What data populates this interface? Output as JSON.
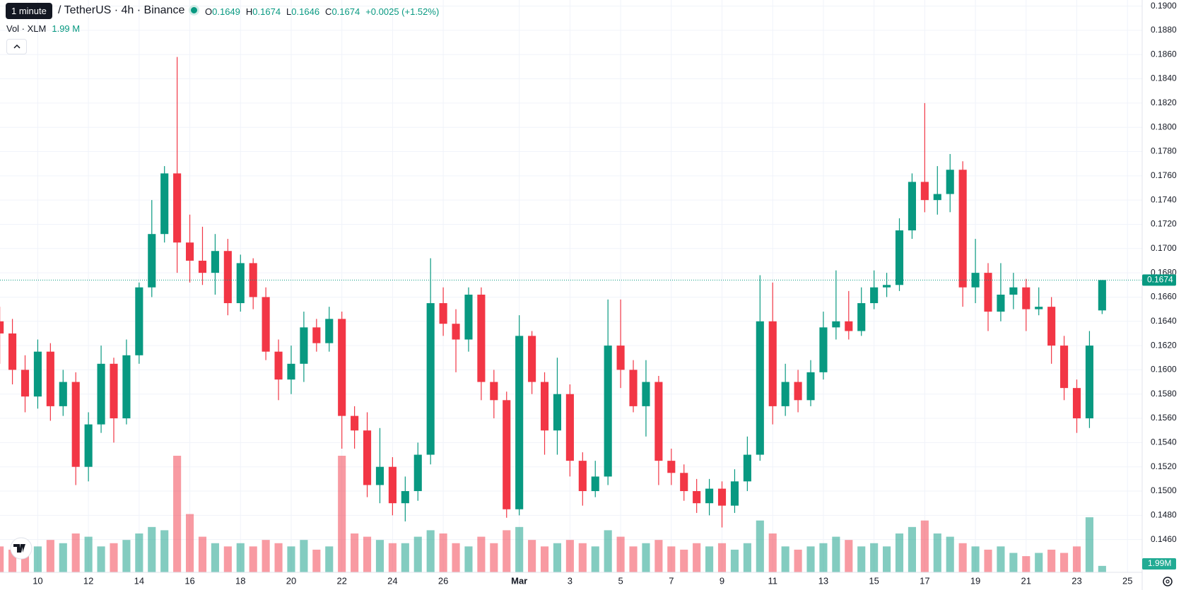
{
  "header": {
    "tooltip": "1 minute",
    "symbol": "/ TetherUS · 4h · Binance",
    "labels": {
      "o": "O",
      "h": "H",
      "l": "L",
      "c": "C"
    },
    "change": "+0.0025 (+1.52%)",
    "volume_title": "Vol · XLM",
    "volume_text": "1.99 M"
  },
  "chart_data": {
    "type": "candlestick",
    "grid": true,
    "up_color": "#089981",
    "down_color": "#f23645",
    "x": [
      8.5,
      9,
      9.5,
      10,
      10.5,
      11,
      11.5,
      12,
      12.5,
      13,
      13.5,
      14,
      14.5,
      15,
      15.5,
      16,
      16.5,
      17,
      17.5,
      18,
      18.5,
      19,
      19.5,
      20,
      20.5,
      21,
      21.5,
      22,
      22.5,
      23,
      23.5,
      24,
      24.5,
      25,
      25.5,
      26,
      26.5,
      27,
      27.5,
      28,
      28.5,
      29,
      29.5,
      30,
      30.5,
      31,
      31.5,
      32,
      32.5,
      33,
      33.5,
      34,
      34.5,
      35,
      35.5,
      36,
      36.5,
      37,
      37.5,
      38,
      38.5,
      39,
      39.5,
      40,
      40.5,
      41,
      41.5,
      42,
      42.5,
      43,
      43.5,
      44,
      44.5,
      45,
      45.5,
      46,
      46.5,
      47,
      47.5,
      48,
      48.5,
      49,
      49.5,
      50,
      50.5,
      51,
      51.5,
      52
    ],
    "open": [
      0.164,
      0.163,
      0.16,
      0.1578,
      0.1615,
      0.157,
      0.159,
      0.152,
      0.1555,
      0.1605,
      0.156,
      0.1612,
      0.1668,
      0.1712,
      0.1762,
      0.1705,
      0.169,
      0.168,
      0.1698,
      0.1655,
      0.1688,
      0.166,
      0.1615,
      0.1592,
      0.1605,
      0.1635,
      0.1622,
      0.1642,
      0.1562,
      0.155,
      0.1505,
      0.152,
      0.149,
      0.15,
      0.153,
      0.1655,
      0.1638,
      0.1625,
      0.1662,
      0.159,
      0.1575,
      0.1485,
      0.1628,
      0.159,
      0.155,
      0.158,
      0.1525,
      0.15,
      0.1512,
      0.162,
      0.16,
      0.157,
      0.159,
      0.1525,
      0.1515,
      0.15,
      0.149,
      0.1502,
      0.1488,
      0.1508,
      0.153,
      0.164,
      0.157,
      0.159,
      0.1575,
      0.1598,
      0.1635,
      0.164,
      0.1632,
      0.1655,
      0.1668,
      0.167,
      0.1715,
      0.1755,
      0.174,
      0.1745,
      0.1765,
      0.1668,
      0.168,
      0.1648,
      0.1662,
      0.1668,
      0.165,
      0.1652,
      0.162,
      0.1585,
      0.156,
      0.1649
    ],
    "high": [
      0.1652,
      0.1642,
      0.1612,
      0.1625,
      0.1622,
      0.16,
      0.1598,
      0.1565,
      0.162,
      0.161,
      0.1625,
      0.1672,
      0.174,
      0.1768,
      0.1858,
      0.1728,
      0.1718,
      0.1712,
      0.1708,
      0.1695,
      0.1692,
      0.1668,
      0.1625,
      0.162,
      0.1648,
      0.1642,
      0.1652,
      0.1648,
      0.157,
      0.1565,
      0.1552,
      0.1528,
      0.1512,
      0.154,
      0.1692,
      0.1668,
      0.165,
      0.1668,
      0.1668,
      0.16,
      0.1582,
      0.1645,
      0.1632,
      0.1598,
      0.161,
      0.1588,
      0.1532,
      0.1525,
      0.1658,
      0.1658,
      0.1608,
      0.1608,
      0.1595,
      0.1535,
      0.1522,
      0.151,
      0.151,
      0.1508,
      0.1518,
      0.1545,
      0.1678,
      0.1672,
      0.1605,
      0.16,
      0.1608,
      0.1648,
      0.1682,
      0.1665,
      0.1668,
      0.1682,
      0.168,
      0.1725,
      0.1762,
      0.182,
      0.1768,
      0.1778,
      0.1772,
      0.1708,
      0.1688,
      0.1688,
      0.168,
      0.1675,
      0.1668,
      0.166,
      0.1628,
      0.1592,
      0.1632,
      0.1674
    ],
    "low": [
      0.1605,
      0.1588,
      0.1565,
      0.1568,
      0.1558,
      0.1562,
      0.1505,
      0.1508,
      0.1548,
      0.154,
      0.1555,
      0.1605,
      0.166,
      0.1705,
      0.168,
      0.1672,
      0.167,
      0.1662,
      0.1645,
      0.1648,
      0.165,
      0.1608,
      0.1575,
      0.158,
      0.159,
      0.1615,
      0.1615,
      0.1535,
      0.1535,
      0.1495,
      0.149,
      0.148,
      0.1475,
      0.1492,
      0.1522,
      0.1628,
      0.1598,
      0.1615,
      0.1575,
      0.156,
      0.1478,
      0.148,
      0.158,
      0.153,
      0.153,
      0.1512,
      0.1488,
      0.1495,
      0.1505,
      0.1585,
      0.1565,
      0.1545,
      0.1505,
      0.1505,
      0.1492,
      0.1482,
      0.148,
      0.147,
      0.1482,
      0.15,
      0.1525,
      0.1555,
      0.1562,
      0.1565,
      0.157,
      0.1592,
      0.1625,
      0.1625,
      0.1628,
      0.165,
      0.166,
      0.1665,
      0.1708,
      0.173,
      0.1728,
      0.173,
      0.1652,
      0.1655,
      0.1632,
      0.164,
      0.165,
      0.1632,
      0.1645,
      0.1605,
      0.1575,
      0.1548,
      0.1552,
      0.1646
    ],
    "close": [
      0.163,
      0.16,
      0.1578,
      0.1615,
      0.157,
      0.159,
      0.152,
      0.1555,
      0.1605,
      0.156,
      0.1612,
      0.1668,
      0.1712,
      0.1762,
      0.1705,
      0.169,
      0.168,
      0.1698,
      0.1655,
      0.1688,
      0.166,
      0.1615,
      0.1592,
      0.1605,
      0.1635,
      0.1622,
      0.1642,
      0.1562,
      0.155,
      0.1505,
      0.152,
      0.149,
      0.15,
      0.153,
      0.1655,
      0.1638,
      0.1625,
      0.1662,
      0.159,
      0.1575,
      0.1485,
      0.1628,
      0.159,
      0.155,
      0.158,
      0.1525,
      0.15,
      0.1512,
      0.162,
      0.16,
      0.157,
      0.159,
      0.1525,
      0.1515,
      0.15,
      0.149,
      0.1502,
      0.1488,
      0.1508,
      0.153,
      0.164,
      0.157,
      0.159,
      0.1575,
      0.1598,
      0.1635,
      0.164,
      0.1632,
      0.1655,
      0.1668,
      0.167,
      0.1715,
      0.1755,
      0.174,
      0.1745,
      0.1765,
      0.1668,
      0.168,
      0.1648,
      0.1662,
      0.1668,
      0.165,
      0.1652,
      0.162,
      0.1585,
      0.156,
      0.162,
      0.1674
    ],
    "volume": [
      8,
      7,
      9,
      8,
      10,
      9,
      12,
      11,
      8,
      9,
      10,
      12,
      14,
      13,
      36,
      18,
      11,
      9,
      8,
      9,
      8,
      10,
      9,
      8,
      10,
      7,
      8,
      36,
      12,
      11,
      10,
      9,
      9,
      11,
      13,
      12,
      9,
      8,
      11,
      9,
      13,
      14,
      10,
      8,
      9,
      10,
      9,
      8,
      13,
      11,
      8,
      9,
      10,
      8,
      7,
      9,
      8,
      9,
      7,
      9,
      16,
      12,
      8,
      7,
      8,
      9,
      11,
      10,
      8,
      9,
      8,
      12,
      14,
      16,
      12,
      11,
      9,
      8,
      7,
      8,
      6,
      5,
      6,
      7,
      6,
      8,
      17,
      1.99
    ],
    "volume_labels": [
      null,
      null,
      null,
      null,
      null,
      null,
      null,
      null,
      null,
      null,
      null,
      null,
      null,
      null,
      null,
      null,
      null,
      null,
      null,
      null,
      null,
      null,
      null,
      null,
      null,
      null,
      null,
      null,
      null,
      null,
      null,
      null,
      null,
      null,
      null,
      null,
      null,
      null,
      null,
      null,
      null,
      null,
      null,
      null,
      null,
      null,
      null,
      null,
      null,
      null,
      null,
      null,
      null,
      null,
      null,
      null,
      null,
      null,
      null,
      null,
      null,
      null,
      null,
      null,
      null,
      null,
      null,
      null,
      null,
      null,
      null,
      null,
      null,
      null,
      null,
      null,
      null,
      null,
      null,
      null,
      null,
      null,
      null,
      null,
      null,
      null,
      null,
      "1.99M"
    ],
    "xlim": [
      8.51,
      53.58
    ],
    "xticks": [
      10,
      12,
      14,
      16,
      18,
      20,
      22,
      24,
      26,
      {
        "value": 29,
        "label": "Mar"
      },
      {
        "value": 31,
        "label": "3"
      },
      {
        "value": 33,
        "label": "5"
      },
      {
        "value": 35,
        "label": "7"
      },
      {
        "value": 37,
        "label": "9"
      },
      {
        "value": 39,
        "label": "11"
      },
      {
        "value": 41,
        "label": "13"
      },
      {
        "value": 43,
        "label": "15"
      },
      {
        "value": 45,
        "label": "17"
      },
      {
        "value": 47,
        "label": "19"
      },
      {
        "value": 49,
        "label": "21"
      },
      {
        "value": 51,
        "label": "23"
      },
      {
        "value": 53,
        "label": "25"
      }
    ],
    "ylim": [
      0.1433,
      0.1905
    ],
    "yticks": [
      {
        "value": 0.146,
        "label": "0.1460"
      },
      {
        "value": 0.148,
        "label": "0.1480"
      },
      {
        "value": 0.15,
        "label": "0.1500"
      },
      {
        "value": 0.152,
        "label": "0.1520"
      },
      {
        "value": 0.154,
        "label": "0.1540"
      },
      {
        "value": 0.156,
        "label": "0.1560"
      },
      {
        "value": 0.158,
        "label": "0.1580"
      },
      {
        "value": 0.16,
        "label": "0.1600"
      },
      {
        "value": 0.162,
        "label": "0.1620"
      },
      {
        "value": 0.164,
        "label": "0.1640"
      },
      {
        "value": 0.166,
        "label": "0.1660"
      },
      {
        "value": 0.168,
        "label": "0.1680"
      },
      {
        "value": 0.17,
        "label": "0.1700"
      },
      {
        "value": 0.172,
        "label": "0.1720"
      },
      {
        "value": 0.174,
        "label": "0.1740"
      },
      {
        "value": 0.176,
        "label": "0.1760"
      },
      {
        "value": 0.178,
        "label": "0.1780"
      },
      {
        "value": 0.18,
        "label": "0.1800"
      },
      {
        "value": 0.182,
        "label": "0.1820"
      },
      {
        "value": 0.184,
        "label": "0.1840"
      },
      {
        "value": 0.186,
        "label": "0.1860"
      },
      {
        "value": 0.188,
        "label": "0.1880"
      },
      {
        "value": 0.19,
        "label": "0.1900"
      }
    ]
  }
}
